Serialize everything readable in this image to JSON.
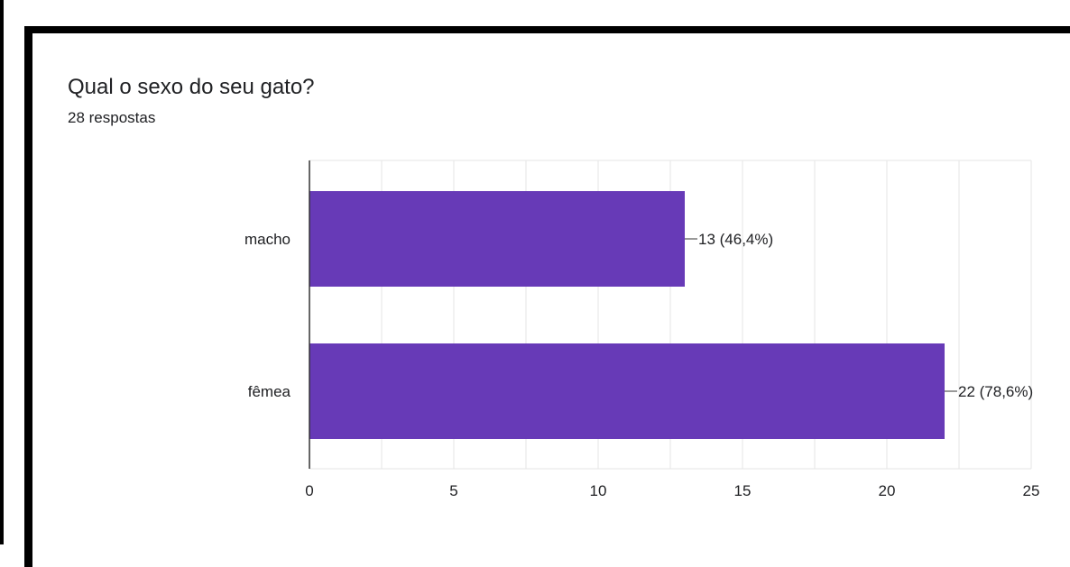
{
  "question": {
    "title": "Qual o sexo do seu gato?",
    "responses": "28 respostas"
  },
  "colors": {
    "bar": "#673ab7",
    "grid": "#e6e6e6",
    "axis": "#333333"
  },
  "chart_data": {
    "type": "bar",
    "orientation": "horizontal",
    "categories": [
      "macho",
      "fêmea"
    ],
    "values": [
      13,
      22
    ],
    "data_labels": [
      "13 (46,4%)",
      "22 (78,6%)"
    ],
    "xlim": [
      0,
      25
    ],
    "xticks": [
      0,
      5,
      10,
      15,
      20,
      25
    ],
    "grid": true,
    "title": "Qual o sexo do seu gato?",
    "xlabel": "",
    "ylabel": ""
  }
}
